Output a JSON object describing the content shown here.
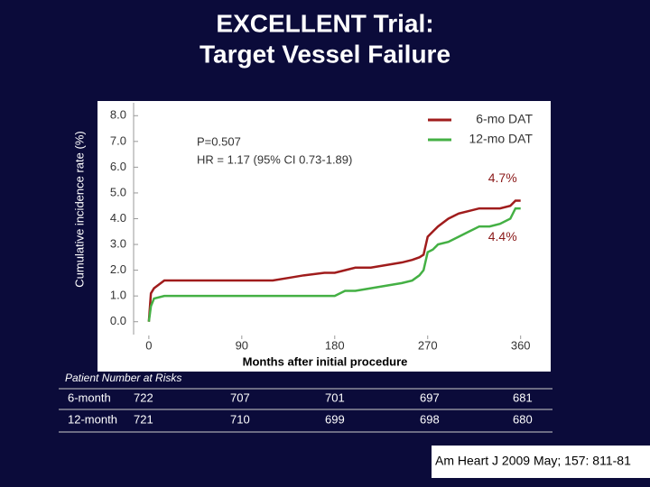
{
  "chart_data": {
    "type": "line",
    "step": "post",
    "title": [
      "EXCELLENT Trial:",
      "Target Vessel Failure"
    ],
    "ylabel": "Cumulative incidence rate (%)",
    "xlabel": "Months after initial procedure",
    "annotations": [
      "P=0.507",
      "HR = 1.17 (95% CI 0.73-1.89)"
    ],
    "legend": "upper right",
    "x": [
      0,
      2,
      5,
      15,
      40,
      80,
      120,
      135,
      150,
      170,
      180,
      190,
      200,
      215,
      230,
      245,
      255,
      262,
      266,
      270,
      275,
      280,
      290,
      300,
      310,
      320,
      330,
      340,
      350,
      355,
      360
    ],
    "series": [
      {
        "name": "6-mo DAT",
        "color": "#a01c1c",
        "values": [
          0,
          1.1,
          1.3,
          1.6,
          1.6,
          1.6,
          1.6,
          1.7,
          1.8,
          1.9,
          1.9,
          2.0,
          2.1,
          2.1,
          2.2,
          2.3,
          2.4,
          2.5,
          2.6,
          3.3,
          3.5,
          3.7,
          4.0,
          4.2,
          4.3,
          4.4,
          4.4,
          4.4,
          4.5,
          4.7,
          4.7
        ],
        "value_labels": [
          null,
          null,
          null,
          null,
          null,
          null,
          null,
          null,
          null,
          null,
          null,
          null,
          null,
          null,
          null,
          null,
          null,
          null,
          null,
          null,
          null,
          null,
          null,
          null,
          null,
          null,
          null,
          null,
          null,
          null,
          "4.7%"
        ]
      },
      {
        "name": "12-mo DAT",
        "color": "#44b044",
        "values": [
          0,
          0.6,
          0.9,
          1.0,
          1.0,
          1.0,
          1.0,
          1.0,
          1.0,
          1.0,
          1.0,
          1.2,
          1.2,
          1.3,
          1.4,
          1.5,
          1.6,
          1.8,
          2.0,
          2.7,
          2.8,
          3.0,
          3.1,
          3.3,
          3.5,
          3.7,
          3.7,
          3.8,
          4.0,
          4.4,
          4.4
        ],
        "value_labels": [
          null,
          null,
          null,
          null,
          null,
          null,
          null,
          null,
          null,
          null,
          null,
          null,
          null,
          null,
          null,
          null,
          null,
          null,
          null,
          null,
          null,
          null,
          null,
          null,
          null,
          null,
          null,
          null,
          null,
          null,
          "4.4%"
        ]
      }
    ],
    "xlim": [
      -13,
      376
    ],
    "xticks": [
      0,
      90,
      180,
      270,
      360
    ],
    "ylim": [
      -0.5,
      8.5
    ],
    "yticks": [
      {
        "value": 0,
        "label": "0.0"
      },
      {
        "value": 1,
        "label": "1.0"
      },
      {
        "value": 2,
        "label": "2.0"
      },
      {
        "value": 3,
        "label": "3.0"
      },
      {
        "value": 4,
        "label": "4.0"
      },
      {
        "value": 5,
        "label": "5.0"
      },
      {
        "value": 6,
        "label": "6.0"
      },
      {
        "value": 7,
        "label": "7.0"
      },
      {
        "value": 8,
        "label": "8.0"
      }
    ],
    "grid": false
  },
  "risk_table": {
    "title": "Patient Number at Risks",
    "rows": [
      [
        "6-month",
        "722",
        "707",
        "701",
        "697",
        "681"
      ],
      [
        "12-month",
        "721",
        "710",
        "699",
        "698",
        "680"
      ]
    ]
  },
  "citation": "Am Heart J 2009 May; 157: 811-81"
}
